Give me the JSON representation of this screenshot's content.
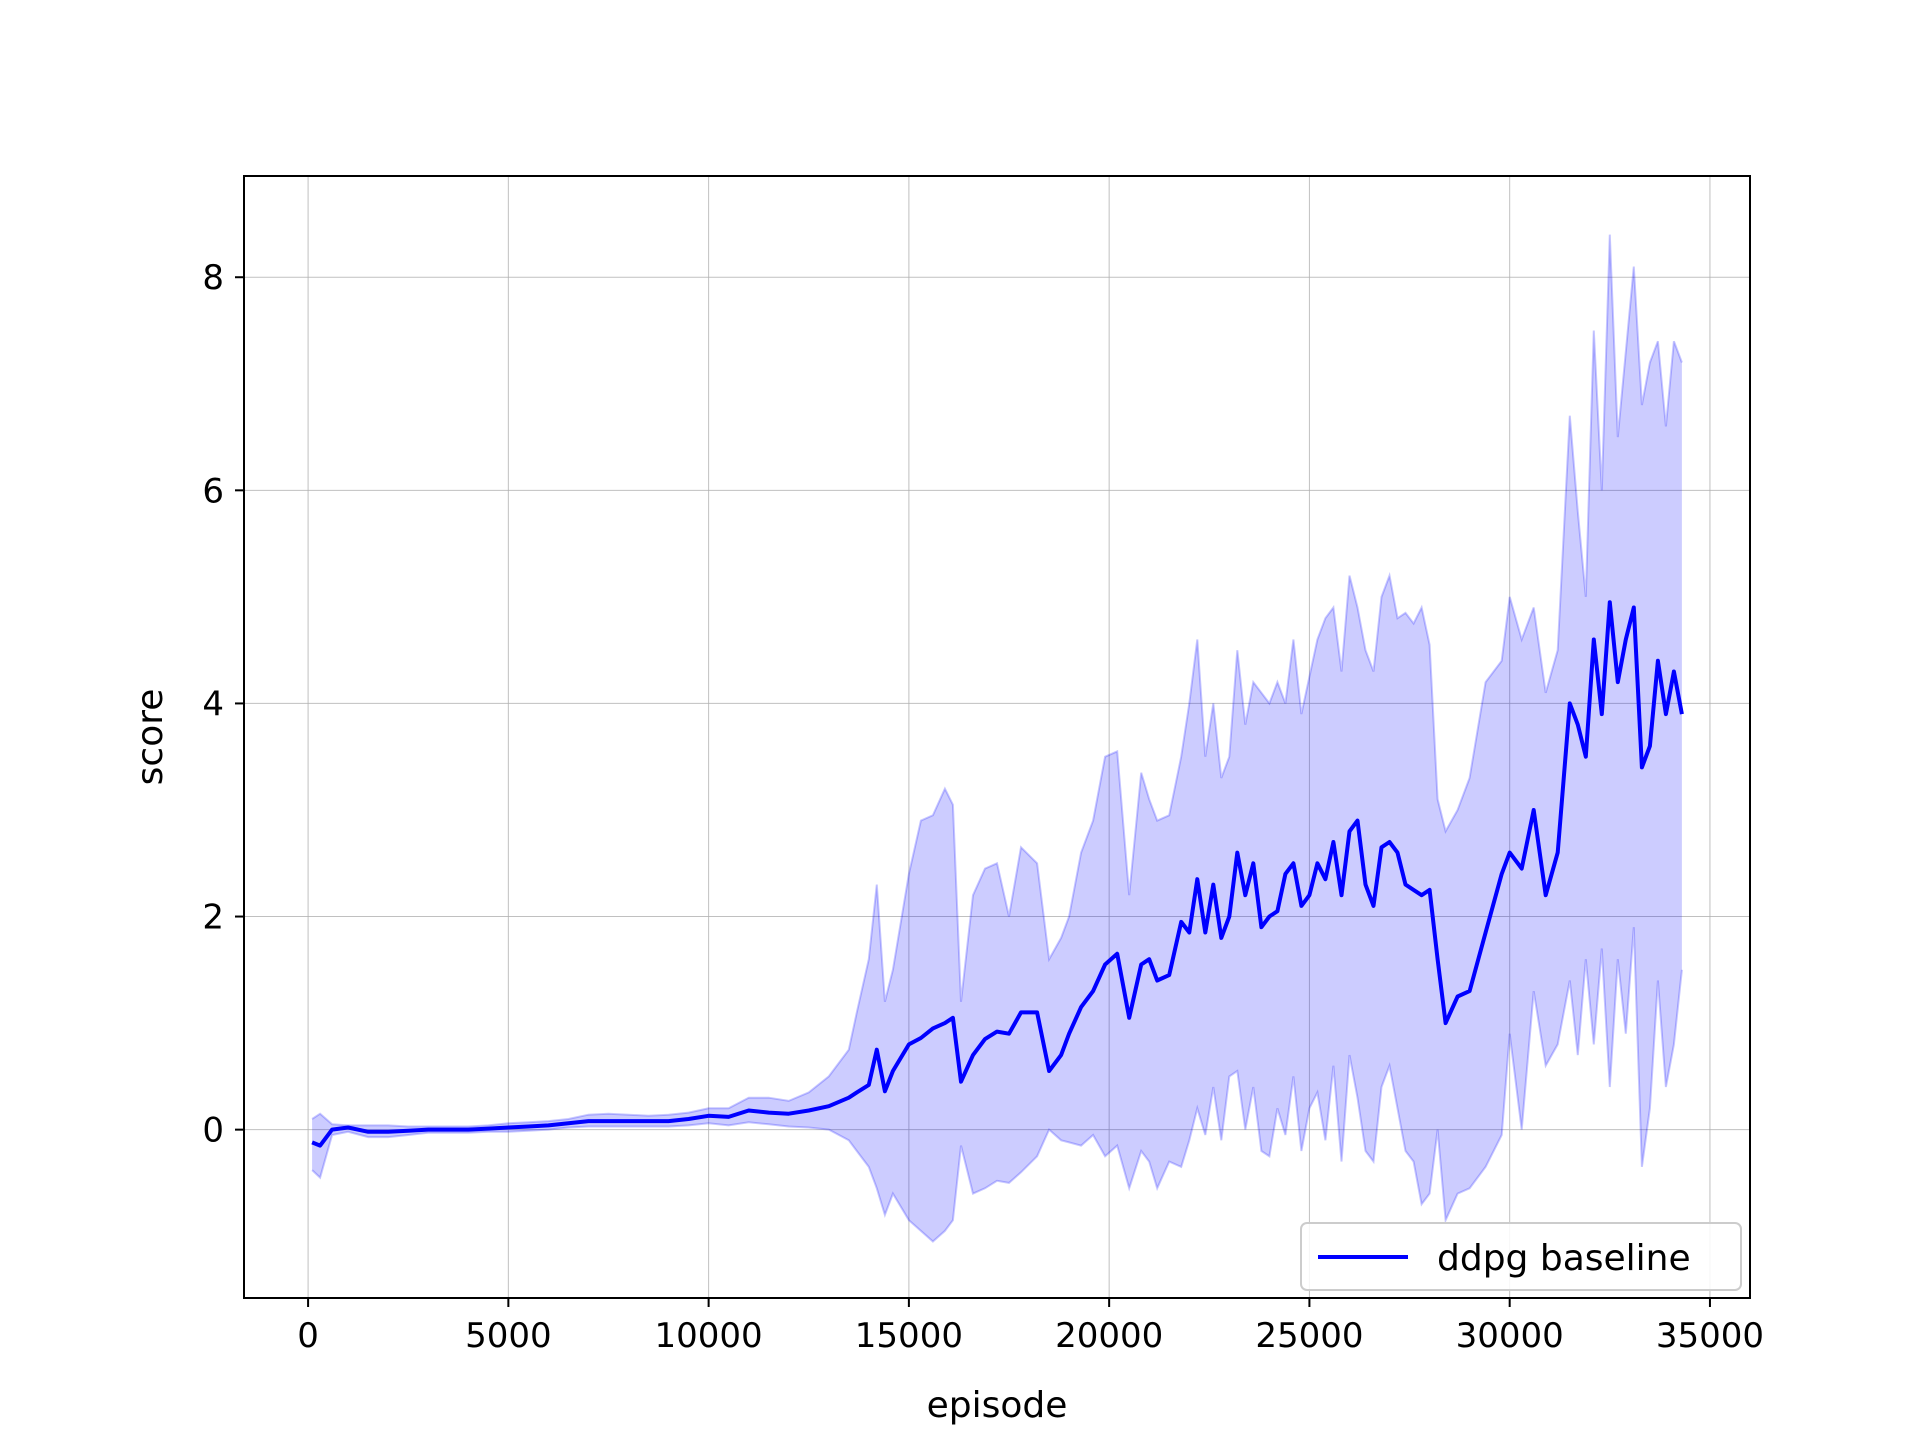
{
  "chart_data": {
    "type": "line",
    "title": "",
    "xlabel": "episode",
    "ylabel": "score",
    "xlim": [
      -1600,
      36000
    ],
    "ylim": [
      -1.58,
      8.95
    ],
    "xticks": [
      0,
      5000,
      10000,
      15000,
      20000,
      25000,
      30000,
      35000
    ],
    "yticks": [
      0,
      2,
      4,
      6,
      8
    ],
    "grid": true,
    "legend_position": "lower right",
    "colors": {
      "line": "#0000ff",
      "band": "#0000ff"
    },
    "series": [
      {
        "name": "ddpg baseline",
        "band_note": "shaded region = spread (lower/upper)",
        "x": [
          100,
          300,
          600,
          1000,
          1500,
          2000,
          2500,
          3000,
          3500,
          4000,
          4500,
          5000,
          5500,
          6000,
          6500,
          7000,
          7500,
          8000,
          8500,
          9000,
          9500,
          10000,
          10500,
          11000,
          11500,
          12000,
          12500,
          13000,
          13500,
          13700,
          14000,
          14200,
          14400,
          14600,
          15000,
          15300,
          15600,
          15900,
          16100,
          16300,
          16600,
          16900,
          17200,
          17500,
          17800,
          18200,
          18500,
          18800,
          19000,
          19300,
          19600,
          19900,
          20200,
          20500,
          20800,
          21000,
          21200,
          21500,
          21800,
          22000,
          22200,
          22400,
          22600,
          22800,
          23000,
          23200,
          23400,
          23600,
          23800,
          24000,
          24200,
          24400,
          24600,
          24800,
          25000,
          25200,
          25400,
          25600,
          25800,
          26000,
          26200,
          26400,
          26600,
          26800,
          27000,
          27200,
          27400,
          27600,
          27800,
          28000,
          28200,
          28400,
          28700,
          29000,
          29400,
          29800,
          30000,
          30300,
          30600,
          30900,
          31200,
          31500,
          31700,
          31900,
          32100,
          32300,
          32500,
          32700,
          32900,
          33100,
          33300,
          33500,
          33700,
          33900,
          34100,
          34300
        ],
        "y": [
          -0.12,
          -0.15,
          0.0,
          0.02,
          -0.02,
          -0.02,
          -0.01,
          0.0,
          0.0,
          0.0,
          0.01,
          0.02,
          0.03,
          0.04,
          0.06,
          0.08,
          0.08,
          0.08,
          0.08,
          0.08,
          0.1,
          0.13,
          0.12,
          0.18,
          0.16,
          0.15,
          0.18,
          0.22,
          0.3,
          0.35,
          0.42,
          0.75,
          0.36,
          0.55,
          0.8,
          0.86,
          0.95,
          1.0,
          1.05,
          0.45,
          0.7,
          0.85,
          0.92,
          0.9,
          1.1,
          1.1,
          0.55,
          0.7,
          0.9,
          1.15,
          1.3,
          1.55,
          1.65,
          1.05,
          1.55,
          1.6,
          1.4,
          1.45,
          1.95,
          1.85,
          2.35,
          1.85,
          2.3,
          1.8,
          2.0,
          2.6,
          2.2,
          2.5,
          1.9,
          2.0,
          2.05,
          2.4,
          2.5,
          2.1,
          2.2,
          2.5,
          2.35,
          2.7,
          2.2,
          2.8,
          2.9,
          2.3,
          2.1,
          2.65,
          2.7,
          2.6,
          2.3,
          2.25,
          2.2,
          2.25,
          1.6,
          1.0,
          1.25,
          1.3,
          1.85,
          2.4,
          2.6,
          2.45,
          3.0,
          2.2,
          2.6,
          4.0,
          3.8,
          3.5,
          4.6,
          3.9,
          4.95,
          4.2,
          4.6,
          4.9,
          3.4,
          3.6,
          4.4,
          3.9,
          4.3,
          3.9
        ],
        "lower": [
          -0.38,
          -0.45,
          -0.05,
          -0.02,
          -0.07,
          -0.07,
          -0.05,
          -0.03,
          -0.03,
          -0.03,
          -0.02,
          -0.02,
          -0.01,
          0.0,
          0.02,
          0.03,
          0.03,
          0.03,
          0.03,
          0.03,
          0.04,
          0.06,
          0.04,
          0.07,
          0.05,
          0.03,
          0.02,
          0.0,
          -0.1,
          -0.2,
          -0.35,
          -0.55,
          -0.8,
          -0.6,
          -0.85,
          -0.95,
          -1.05,
          -0.95,
          -0.85,
          -0.15,
          -0.6,
          -0.55,
          -0.48,
          -0.5,
          -0.4,
          -0.25,
          0.0,
          -0.1,
          -0.12,
          -0.15,
          -0.05,
          -0.25,
          -0.15,
          -0.55,
          -0.2,
          -0.3,
          -0.55,
          -0.3,
          -0.35,
          -0.1,
          0.2,
          -0.05,
          0.4,
          -0.1,
          0.5,
          0.55,
          0.0,
          0.4,
          -0.2,
          -0.25,
          0.2,
          -0.05,
          0.5,
          -0.2,
          0.2,
          0.35,
          -0.1,
          0.6,
          -0.3,
          0.7,
          0.3,
          -0.2,
          -0.3,
          0.4,
          0.6,
          0.2,
          -0.2,
          -0.3,
          -0.7,
          -0.6,
          0.0,
          -0.85,
          -0.6,
          -0.55,
          -0.35,
          -0.05,
          0.9,
          0.0,
          1.3,
          0.6,
          0.8,
          1.4,
          0.7,
          1.6,
          0.8,
          1.7,
          0.4,
          1.6,
          0.9,
          1.9,
          -0.35,
          0.2,
          1.4,
          0.4,
          0.8,
          1.5
        ],
        "upper": [
          0.1,
          0.15,
          0.05,
          0.04,
          0.04,
          0.04,
          0.03,
          0.03,
          0.03,
          0.03,
          0.04,
          0.06,
          0.07,
          0.08,
          0.1,
          0.14,
          0.15,
          0.14,
          0.13,
          0.14,
          0.16,
          0.2,
          0.2,
          0.3,
          0.3,
          0.27,
          0.35,
          0.5,
          0.75,
          1.1,
          1.6,
          2.3,
          1.2,
          1.5,
          2.4,
          2.9,
          2.95,
          3.2,
          3.05,
          1.2,
          2.2,
          2.45,
          2.5,
          2.0,
          2.65,
          2.5,
          1.6,
          1.8,
          2.0,
          2.6,
          2.9,
          3.5,
          3.55,
          2.2,
          3.35,
          3.1,
          2.9,
          2.95,
          3.5,
          4.0,
          4.6,
          3.5,
          4.0,
          3.3,
          3.5,
          4.5,
          3.8,
          4.2,
          4.1,
          4.0,
          4.2,
          4.0,
          4.6,
          3.9,
          4.25,
          4.6,
          4.8,
          4.9,
          4.3,
          5.2,
          4.9,
          4.5,
          4.3,
          5.0,
          5.2,
          4.8,
          4.85,
          4.75,
          4.9,
          4.55,
          3.1,
          2.8,
          3.0,
          3.3,
          4.2,
          4.4,
          5.0,
          4.6,
          4.9,
          4.1,
          4.5,
          6.7,
          5.8,
          5.0,
          7.5,
          6.0,
          8.4,
          6.5,
          7.3,
          8.1,
          6.8,
          7.2,
          7.4,
          6.6,
          7.4,
          7.2
        ]
      }
    ]
  }
}
